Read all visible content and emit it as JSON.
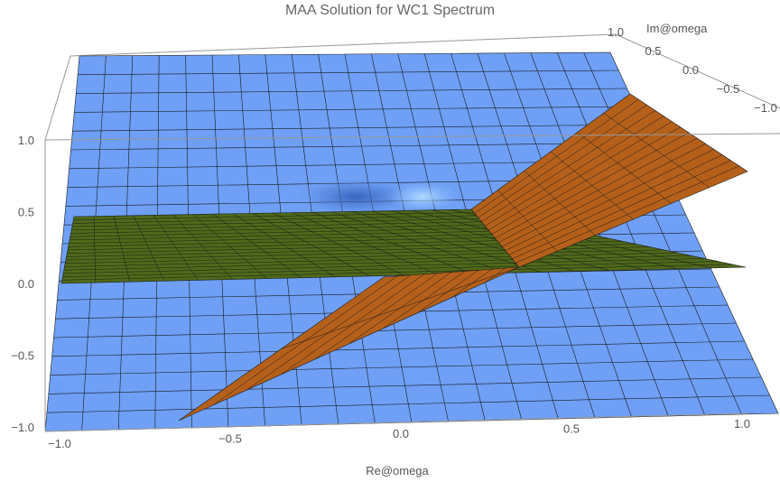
{
  "chart_data": {
    "type": "surface3d",
    "title": "MAA Solution for WC1 Spectrum",
    "xlabel": "Re@omega",
    "ylabel": "Im@omega",
    "zlabel": "",
    "xlim": [
      -1.0,
      1.0
    ],
    "ylim": [
      -1.0,
      1.0
    ],
    "zlim": [
      -1.0,
      1.0
    ],
    "x_ticks": [
      "-1.0",
      "-0.5",
      "0.0",
      "0.5",
      "1.0"
    ],
    "y_ticks": [
      "1.0",
      "0.5",
      "0.0",
      "-0.5",
      "-1.0"
    ],
    "z_ticks": [
      "-1.0",
      "-0.5",
      "0.0",
      "0.5",
      "1.0"
    ],
    "mesh_lines": 20,
    "series": [
      {
        "color": "#6fa0f5",
        "surface": "blue"
      },
      {
        "color": "#4f6a1a",
        "surface": "green"
      },
      {
        "color": "#b5601a",
        "surface": "orange"
      }
    ]
  }
}
